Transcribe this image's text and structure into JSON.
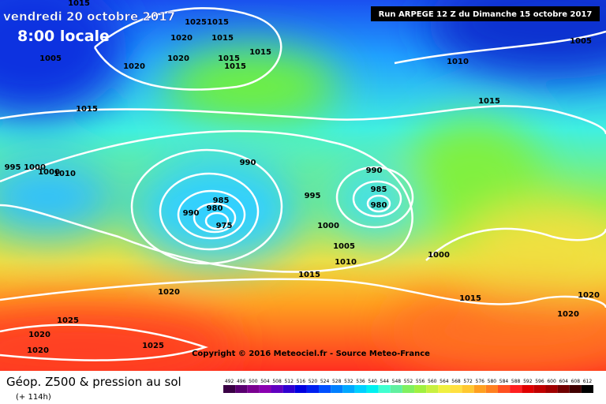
{
  "header": {
    "date": "vendredi 20 octobre 2017",
    "time": "8:00 locale",
    "run": "Run ARPEGE 12 Z du Dimanche 15 octobre 2017"
  },
  "copyright": "Copyright © 2016 Meteociel.fr - Source Meteo-France",
  "footer": {
    "title": "Géop. Z500 & pression au sol",
    "subtitle": "(+ 114h)"
  },
  "legend": {
    "levels": [
      492,
      496,
      500,
      504,
      508,
      512,
      516,
      520,
      524,
      528,
      532,
      536,
      540,
      544,
      548,
      552,
      556,
      560,
      564,
      568,
      572,
      576,
      580,
      584,
      588,
      592,
      596,
      600,
      604,
      608,
      612
    ],
    "colors": [
      "#3a0045",
      "#5a0070",
      "#7a0090",
      "#8a00b0",
      "#6000c0",
      "#3000d0",
      "#0000e0",
      "#0020f0",
      "#0050ff",
      "#0080ff",
      "#00a8ff",
      "#00d0ff",
      "#00f0f0",
      "#40ffd0",
      "#60f0a0",
      "#80f060",
      "#a0f040",
      "#c8f040",
      "#f0f040",
      "#ffe040",
      "#ffc830",
      "#ffa020",
      "#ff8020",
      "#ff5020",
      "#ff2020",
      "#e00000",
      "#c00000",
      "#a00000",
      "#700000",
      "#400000",
      "#000000"
    ]
  },
  "isobar_labels": [
    "1015",
    "1025",
    "1015",
    "1020",
    "1015",
    "1015",
    "1020",
    "1015",
    "1015",
    "1005",
    "1020",
    "1010",
    "1005",
    "1015",
    "1015",
    "995",
    "1000",
    "1000",
    "1010",
    "990",
    "990",
    "985",
    "985",
    "995",
    "980",
    "990",
    "980",
    "975",
    "1000",
    "1005",
    "1010",
    "1000",
    "1015",
    "1020",
    "1015",
    "1020",
    "1025",
    "1020",
    "1020",
    "1025",
    "1020"
  ]
}
